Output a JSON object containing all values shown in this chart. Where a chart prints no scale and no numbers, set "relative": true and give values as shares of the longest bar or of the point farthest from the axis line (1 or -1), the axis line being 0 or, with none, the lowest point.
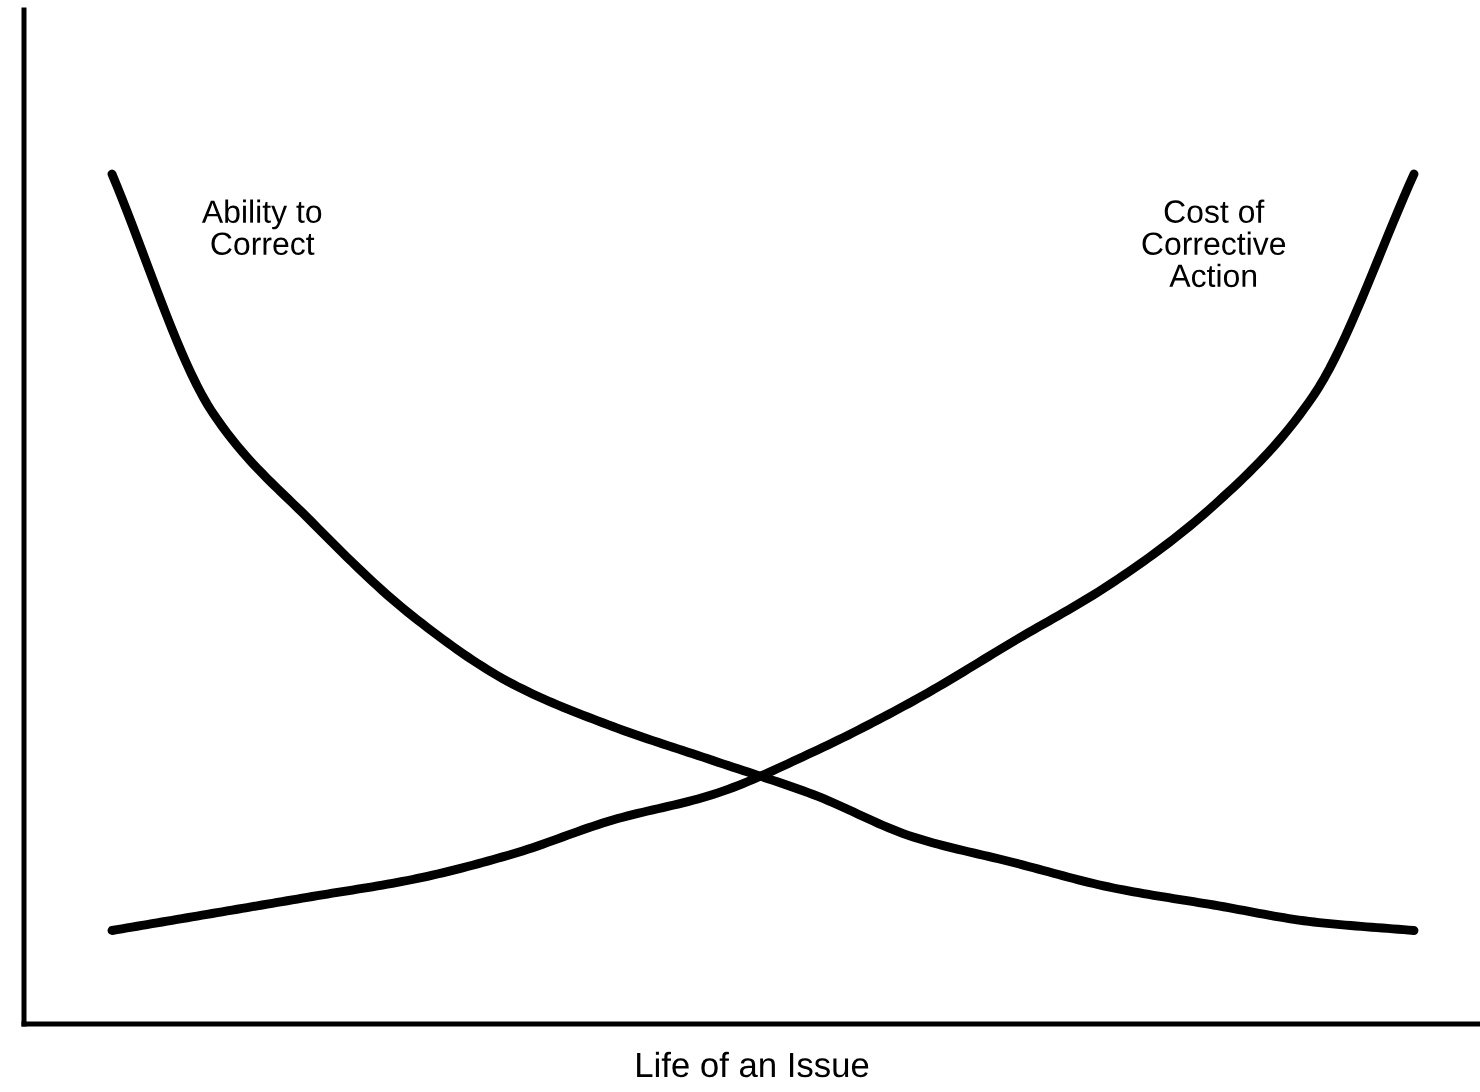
{
  "chart_data": {
    "type": "line",
    "relative": true,
    "xlabel": "Life of an Issue",
    "categories": [
      null,
      null,
      null,
      null,
      null,
      null,
      null,
      null,
      null,
      null,
      null,
      null,
      null,
      null
    ],
    "series": [
      {
        "name": "Ability to\nCorrect",
        "color": "#000000",
        "values": [
          1.0,
          0.72,
          0.59,
          0.48,
          0.4,
          0.35,
          0.31,
          0.27,
          0.22,
          0.19,
          0.16,
          0.14,
          0.12,
          0.11
        ]
      },
      {
        "name": "Cost of\nCorrective\nAction",
        "color": "#000000",
        "values": [
          0.11,
          0.13,
          0.15,
          0.17,
          0.2,
          0.24,
          0.27,
          0.32,
          0.38,
          0.45,
          0.52,
          0.61,
          0.74,
          1.0
        ]
      }
    ],
    "marker": "none",
    "line_style": "solid"
  }
}
